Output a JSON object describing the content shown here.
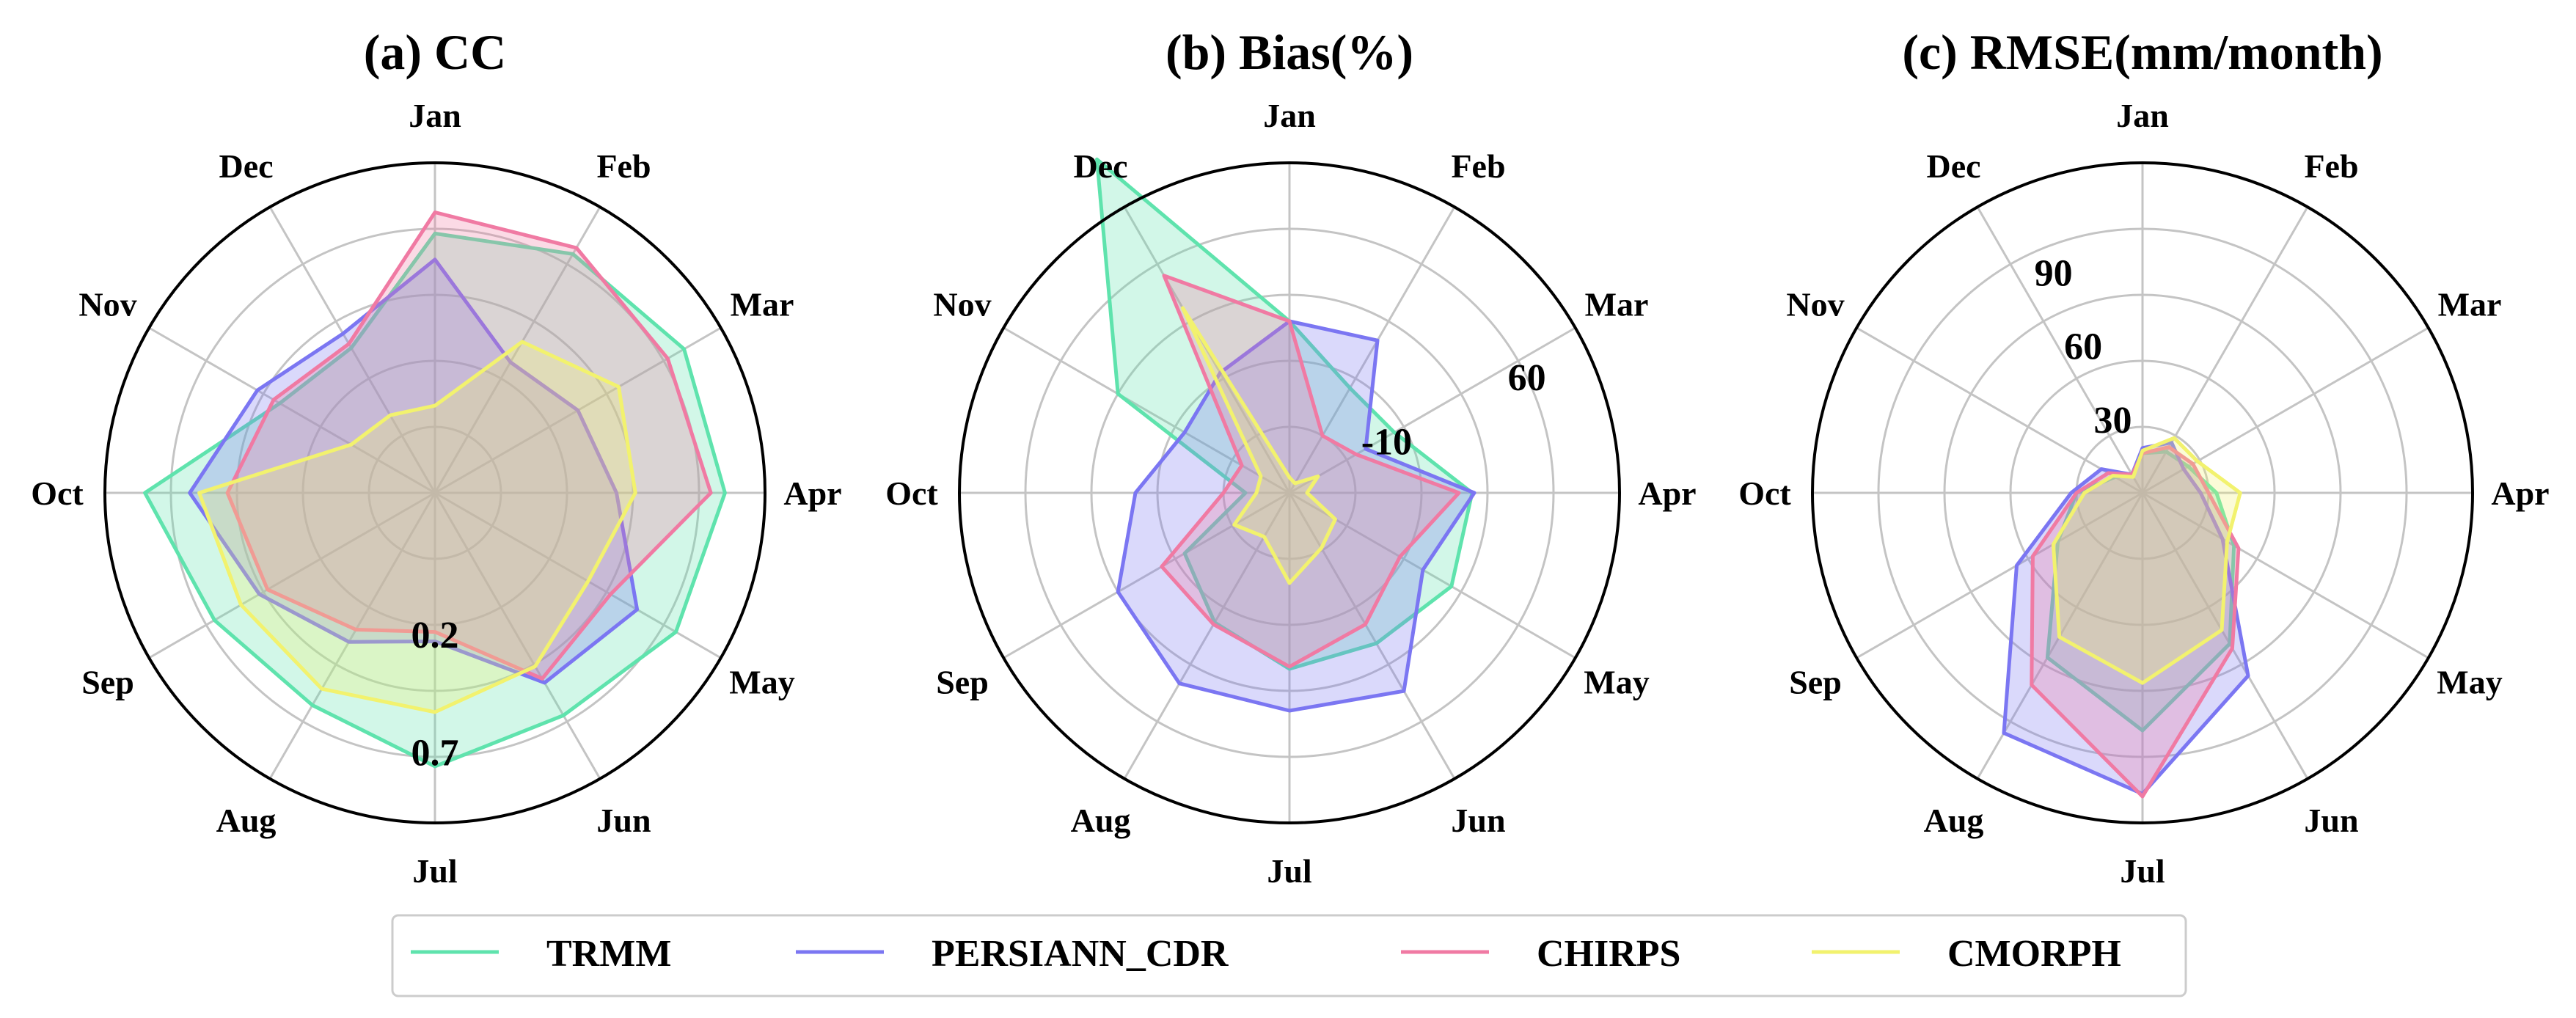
{
  "months": [
    "Jan",
    "Feb",
    "Mar",
    "Apr",
    "May",
    "Jun",
    "Jul",
    "Aug",
    "Sep",
    "Oct",
    "Nov",
    "Dec"
  ],
  "series_colors": {
    "TRMM": "#5fe3ad",
    "PERSIANN_CDR": "#7b76f2",
    "CHIRPS": "#f07aa3",
    "CMORPH": "#f2f26e"
  },
  "legend": [
    "TRMM",
    "PERSIANN_CDR",
    "CHIRPS",
    "CMORPH"
  ],
  "chart_data": [
    {
      "type": "radar",
      "title": "(a) CC",
      "rlim": [
        -0.4,
        1.0
      ],
      "radial_ticks": [
        "0.2",
        "0.7"
      ],
      "radial_tick_values": [
        0.2,
        0.7
      ],
      "grid": true,
      "categories": [
        "Jan",
        "Feb",
        "Mar",
        "Apr",
        "May",
        "Jun",
        "Jul",
        "Aug",
        "Sep",
        "Oct",
        "Nov",
        "Dec"
      ],
      "series": [
        {
          "name": "TRMM",
          "values": [
            0.7,
            0.77,
            0.82,
            0.83,
            0.78,
            0.69,
            0.76,
            0.64,
            0.68,
            0.83,
            0.36,
            0.31
          ]
        },
        {
          "name": "PERSIANN_CDR",
          "values": [
            0.59,
            0.24,
            0.3,
            0.37,
            0.59,
            0.53,
            0.23,
            0.33,
            0.46,
            0.64,
            0.47,
            0.38
          ]
        },
        {
          "name": "CHIRPS",
          "values": [
            0.79,
            0.8,
            0.74,
            0.77,
            0.46,
            0.51,
            0.19,
            0.27,
            0.42,
            0.48,
            0.39,
            0.33
          ]
        },
        {
          "name": "CMORPH",
          "values": [
            -0.03,
            0.34,
            0.5,
            0.45,
            0.35,
            0.45,
            0.53,
            0.56,
            0.55,
            0.6,
            0.01,
            -0.02
          ]
        }
      ]
    },
    {
      "type": "radar",
      "title": "(b) Bias(%)",
      "rlim": [
        -60,
        90
      ],
      "radial_ticks": [
        "-10",
        "60"
      ],
      "radial_tick_values": [
        -10,
        60
      ],
      "grid": true,
      "categories": [
        "Jan",
        "Feb",
        "Mar",
        "Apr",
        "May",
        "Jun",
        "Jul",
        "Aug",
        "Sep",
        "Oct",
        "Nov",
        "Dec"
      ],
      "series": [
        {
          "name": "TRMM",
          "values": [
            18,
            -5,
            -5,
            23,
            25,
            19,
            20,
            8,
            -5,
            -40,
            30,
            115
          ]
        },
        {
          "name": "PERSIANN_CDR",
          "values": [
            18,
            20,
            -20,
            24,
            10,
            44,
            39,
            40,
            30,
            10,
            -5,
            3
          ]
        },
        {
          "name": "CHIRPS",
          "values": [
            18,
            -30,
            -25,
            17,
            -2,
            9,
            19,
            9,
            7,
            -30,
            -35,
            54
          ]
        },
        {
          "name": "CMORPH",
          "values": [
            -53,
            -55,
            -45,
            -52,
            -36,
            -31,
            -19,
            -37,
            -31,
            -45,
            -45,
            37
          ]
        }
      ]
    },
    {
      "type": "radar",
      "title": "(c) RMSE(mm/month)",
      "rlim": [
        0,
        125
      ],
      "radial_ticks": [
        "30",
        "60",
        "90"
      ],
      "radial_tick_values": [
        30,
        60,
        90
      ],
      "grid": true,
      "categories": [
        "Jan",
        "Feb",
        "Mar",
        "Apr",
        "May",
        "Jun",
        "Jul",
        "Aug",
        "Sep",
        "Oct",
        "Nov",
        "Dec"
      ],
      "series": [
        {
          "name": "TRMM",
          "values": [
            15,
            18,
            20,
            28,
            40,
            66,
            90,
            72,
            37,
            25,
            12,
            8
          ]
        },
        {
          "name": "PERSIANN_CDR",
          "values": [
            17,
            22,
            18,
            22,
            35,
            80,
            114,
            105,
            55,
            27,
            18,
            8
          ]
        },
        {
          "name": "CHIRPS",
          "values": [
            15,
            20,
            22,
            25,
            42,
            68,
            115,
            84,
            48,
            25,
            15,
            8
          ]
        },
        {
          "name": "CMORPH",
          "values": [
            16,
            24,
            24,
            37,
            37,
            60,
            72,
            63,
            39,
            22,
            13,
            7
          ]
        }
      ]
    }
  ]
}
